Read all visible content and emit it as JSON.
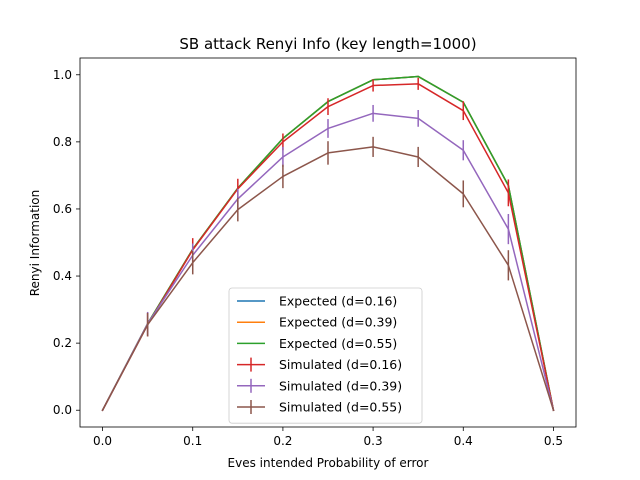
{
  "chart_data": {
    "type": "line",
    "title": "SB attack Renyi Info (key length=1000)",
    "xlabel": "Eves intended Probability of error",
    "ylabel": "Renyi Information",
    "xlim": [
      -0.025,
      0.525
    ],
    "ylim": [
      -0.05,
      1.05
    ],
    "xticks": [
      0.0,
      0.1,
      0.2,
      0.3,
      0.4,
      0.5
    ],
    "xtick_labels": [
      "0.0",
      "0.1",
      "0.2",
      "0.3",
      "0.4",
      "0.5"
    ],
    "yticks": [
      0.0,
      0.2,
      0.4,
      0.6,
      0.8,
      1.0
    ],
    "ytick_labels": [
      "0.0",
      "0.2",
      "0.4",
      "0.6",
      "0.8",
      "1.0"
    ],
    "grid": false,
    "legend_position": "bottom-center",
    "x": [
      0.0,
      0.05,
      0.1,
      0.15,
      0.2,
      0.25,
      0.3,
      0.35,
      0.4,
      0.45,
      0.5
    ],
    "series": [
      {
        "name": "Expected (d=0.16)",
        "kind": "line",
        "color": "#1f77b4",
        "values": [
          0.0,
          0.258,
          0.48,
          0.662,
          0.81,
          0.92,
          0.985,
          0.995,
          0.918,
          0.67,
          0.0
        ]
      },
      {
        "name": "Expected (d=0.39)",
        "kind": "line",
        "color": "#ff7f0e",
        "values": [
          0.0,
          0.258,
          0.48,
          0.662,
          0.81,
          0.92,
          0.985,
          0.995,
          0.918,
          0.67,
          0.0
        ]
      },
      {
        "name": "Expected (d=0.55)",
        "kind": "line",
        "color": "#2ca02c",
        "values": [
          0.0,
          0.258,
          0.48,
          0.662,
          0.81,
          0.92,
          0.985,
          0.995,
          0.918,
          0.67,
          0.0
        ]
      },
      {
        "name": "Simulated (d=0.16)",
        "kind": "errorbar",
        "color": "#d62728",
        "values": [
          0.0,
          0.255,
          0.478,
          0.66,
          0.8,
          0.905,
          0.968,
          0.973,
          0.893,
          0.648,
          0.0
        ],
        "errors": [
          0.0,
          0.035,
          0.035,
          0.03,
          0.025,
          0.025,
          0.018,
          0.018,
          0.028,
          0.04,
          0.0
        ]
      },
      {
        "name": "Simulated (d=0.39)",
        "kind": "errorbar",
        "color": "#9467bd",
        "values": [
          0.0,
          0.258,
          0.462,
          0.63,
          0.755,
          0.84,
          0.885,
          0.87,
          0.775,
          0.54,
          0.0
        ],
        "errors": [
          0.0,
          0.035,
          0.035,
          0.03,
          0.03,
          0.028,
          0.025,
          0.025,
          0.03,
          0.045,
          0.0
        ]
      },
      {
        "name": "Simulated (d=0.55)",
        "kind": "errorbar",
        "color": "#8c564b",
        "values": [
          0.0,
          0.255,
          0.44,
          0.598,
          0.697,
          0.767,
          0.785,
          0.755,
          0.645,
          0.432,
          0.0
        ],
        "errors": [
          0.0,
          0.035,
          0.035,
          0.035,
          0.035,
          0.035,
          0.03,
          0.03,
          0.04,
          0.045,
          0.0
        ]
      }
    ]
  }
}
